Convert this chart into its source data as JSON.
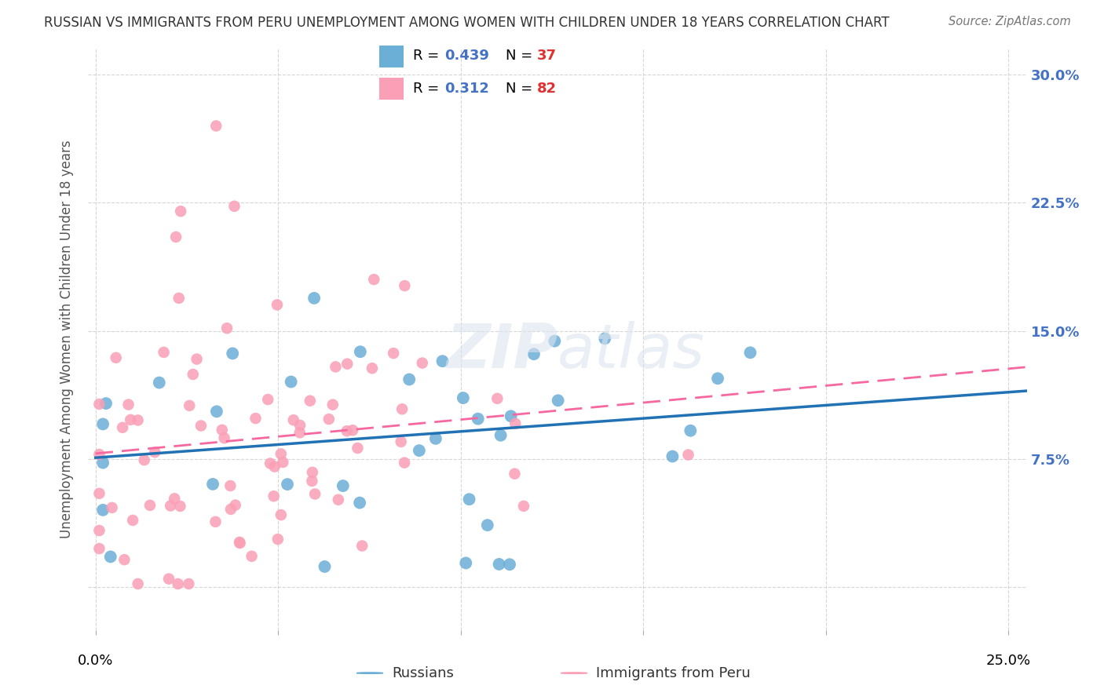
{
  "title": "RUSSIAN VS IMMIGRANTS FROM PERU UNEMPLOYMENT AMONG WOMEN WITH CHILDREN UNDER 18 YEARS CORRELATION CHART",
  "source": "Source: ZipAtlas.com",
  "ylabel": "Unemployment Among Women with Children Under 18 years",
  "ytick_values": [
    0.0,
    0.075,
    0.15,
    0.225,
    0.3
  ],
  "ytick_labels": [
    "",
    "7.5%",
    "15.0%",
    "22.5%",
    "30.0%"
  ],
  "xlim": [
    -0.002,
    0.255
  ],
  "ylim": [
    -0.025,
    0.315
  ],
  "legend_r1": "0.439",
  "legend_n1": "37",
  "legend_r2": "0.312",
  "legend_n2": "82",
  "color_russian": "#6baed6",
  "color_peru": "#fa9fb5",
  "color_russian_line": "#2171b5",
  "color_peru_line": "#f768a1",
  "color_ytick": "#4472c4",
  "color_ntick": "#e03030"
}
